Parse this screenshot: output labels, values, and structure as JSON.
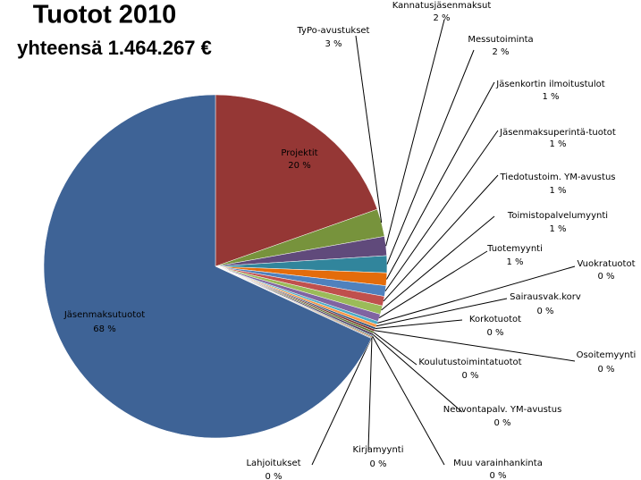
{
  "chart_data": {
    "type": "pie",
    "title": "Tuotot 2010",
    "subtitle": "yhteensä 1.464.267 €",
    "categories": [
      "Projektit",
      "TyPo-avustukset",
      "Kannatusjäsenmaksut",
      "Messutoiminta",
      "Jäsenkortin ilmoitustulot",
      "Jäsenmaksuperintä-tuotot",
      "Tiedotustoim. YM-avustus",
      "Toimistopalvelumyynti",
      "Tuotemyynti",
      "Vuokratuotot",
      "Sairausvak.korv",
      "Korkotuotot",
      "Osoitemyynti",
      "Koulutustoimintatuotot",
      "Neuvontapalv. YM-avustus",
      "Muu varainhankinta",
      "Kirjamyynti",
      "Lahjoitukset",
      "Jäsenmaksutuotot"
    ],
    "values": [
      19.6,
      2.6,
      1.8,
      1.6,
      1.2,
      1.0,
      0.9,
      0.8,
      0.7,
      0.3,
      0.3,
      0.2,
      0.2,
      0.2,
      0.2,
      0.1,
      0.1,
      0.1,
      68.1
    ],
    "value_labels": [
      "20 %",
      "3 %",
      "2 %",
      "2 %",
      "1 %",
      "1 %",
      "1 %",
      "1 %",
      "1 %",
      "0 %",
      "0 %",
      "0 %",
      "0 %",
      "0 %",
      "0 %",
      "0 %",
      "0 %",
      "0 %",
      "68 %"
    ],
    "colors": [
      "#953735",
      "#77933c",
      "#604a7b",
      "#31859c",
      "#e46c0a",
      "#4f81bd",
      "#c0504d",
      "#9bbb59",
      "#8064a2",
      "#4bacc6",
      "#f79646",
      "#2c4d75",
      "#772c2a",
      "#5f7530",
      "#4d3b62",
      "#276a7c",
      "#b65708",
      "#a5a5a5",
      "#3e6396"
    ]
  }
}
